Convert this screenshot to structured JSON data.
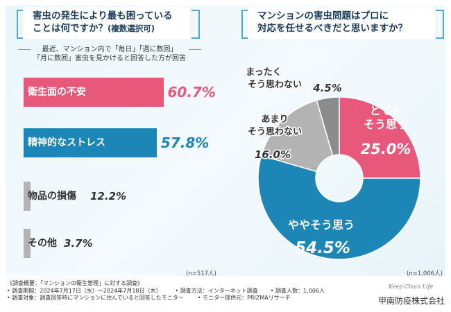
{
  "left_question": {
    "line1": "害虫の発生により最も困っている",
    "line2": "ことは何ですか？",
    "line2_small": "(複数選択可)"
  },
  "right_question": {
    "line1": "マンションの害虫問題はプロに",
    "line2": "対応を任せるべきだと思いますか？"
  },
  "sub_note": {
    "line1": "最近、マンション内で「毎日」「週に数回」",
    "line2": "「月に数回」害虫を見かけると回答した方が回答"
  },
  "chart_data": [
    {
      "type": "bar",
      "orientation": "horizontal",
      "title": "害虫の発生により最も困っていることは何ですか？(複数選択可)",
      "categories": [
        "衛生面の不安",
        "精神的なストレス",
        "物品の損傷",
        "その他"
      ],
      "values": [
        60.7,
        57.8,
        12.2,
        3.7
      ],
      "value_labels": [
        "60.7%",
        "57.8%",
        "12.2%",
        "3.7%"
      ],
      "unit": "%",
      "colors": [
        "#e8587a",
        "#1c87b6",
        "#b3b3b3",
        "#b3b3b3"
      ],
      "xlim": [
        0,
        100
      ],
      "sample_note": "(n=517人)"
    },
    {
      "type": "pie",
      "style": "donut",
      "title": "マンションの害虫問題はプロに対応を任せるべきだと思いますか？",
      "categories": [
        "とてもそう思う",
        "ややそう思う",
        "あまりそう思わない",
        "まったくそう思わない"
      ],
      "label_lines": [
        [
          "とても",
          "そう思う"
        ],
        [
          "ややそう思う"
        ],
        [
          "あまり",
          "そう思わない"
        ],
        [
          "まったく",
          "そう思わない"
        ]
      ],
      "values": [
        25.0,
        54.5,
        16.0,
        4.5
      ],
      "value_labels": [
        "25.0%",
        "54.5%",
        "16.0%",
        "4.5%"
      ],
      "unit": "%",
      "colors": [
        "#e8587a",
        "#1c87b6",
        "#b3b3b3",
        "#8c8c8c"
      ],
      "sample_note": "(n=1,006人)"
    }
  ],
  "footer": {
    "survey_title": "《調査概要：「マンションの衛生管理」に対する調査》",
    "period": "• 調査期間：2024年7月17日（水）～2024年7月18日（木）",
    "method": "• 調査方法：インターネット調査",
    "respondents": "• 調査人数：1,006人",
    "target": "• 調査対象：調査回答時にマンションに住んでいると回答したモニター",
    "provider": "• モニター提供元：PRIZMAリサーチ"
  },
  "brand": {
    "script": "Keep Clean Life",
    "name": "甲南防疫株式会社"
  }
}
